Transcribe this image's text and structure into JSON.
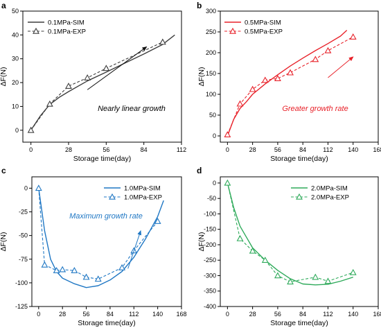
{
  "chart_data": [
    {
      "type": "line",
      "panel": "a",
      "xlabel": "Storage time(day)",
      "ylabel": "ΔF(N)",
      "xlim": [
        -6,
        112
      ],
      "ylim": [
        -5,
        50
      ],
      "xticks": [
        0,
        28,
        56,
        84,
        112
      ],
      "yticks": [
        0,
        10,
        20,
        30,
        40,
        50
      ],
      "legend_position": "top-left",
      "annotation": "Nearly linear growth",
      "arrow": [
        [
          42,
          17
        ],
        [
          86,
          35
        ]
      ],
      "color": "#3d3d3d",
      "series": [
        {
          "name": "0.1MPa-SIM",
          "style": "solid",
          "x": [
            0,
            7,
            14,
            21,
            28,
            42,
            56,
            70,
            84,
            98,
            107
          ],
          "y": [
            0,
            6,
            10.8,
            13.8,
            16.2,
            20.7,
            24.4,
            28.2,
            32,
            36,
            40
          ]
        },
        {
          "name": "0.1MPa-EXP",
          "style": "dashed-triangle",
          "x": [
            0,
            14,
            28,
            42,
            56,
            98
          ],
          "y": [
            0,
            11,
            18.5,
            22,
            26,
            37
          ]
        }
      ]
    },
    {
      "type": "line",
      "panel": "b",
      "xlabel": "Storage time(day)",
      "ylabel": "ΔF(N)",
      "xlim": [
        -8,
        168
      ],
      "ylim": [
        -15,
        300
      ],
      "xticks": [
        0,
        28,
        56,
        84,
        112,
        140,
        168
      ],
      "yticks": [
        0,
        50,
        100,
        150,
        200,
        250,
        300
      ],
      "legend_position": "top-left",
      "annotation": "Greater growth rate",
      "arrow": [
        [
          112,
          140
        ],
        [
          140,
          190
        ]
      ],
      "color": "#e8222a",
      "series": [
        {
          "name": "0.5MPa-SIM",
          "style": "solid",
          "x": [
            0,
            7,
            14,
            21,
            28,
            42,
            56,
            70,
            84,
            98,
            112,
            126,
            133
          ],
          "y": [
            0,
            40,
            66,
            82,
            100,
            125,
            147,
            168,
            187,
            205,
            222,
            240,
            254
          ]
        },
        {
          "name": "0.5MPa-EXP",
          "style": "dashed-triangle",
          "x": [
            0,
            14,
            28,
            42,
            56,
            70,
            98,
            112,
            140
          ],
          "y": [
            3,
            77,
            112,
            134,
            138,
            152,
            184,
            205,
            238
          ]
        }
      ]
    },
    {
      "type": "line",
      "panel": "c",
      "xlabel": "Storage time(day)",
      "ylabel": "ΔF(N)",
      "xlim": [
        -8,
        168
      ],
      "ylim": [
        -125,
        12
      ],
      "xticks": [
        0,
        28,
        56,
        84,
        112,
        140,
        168
      ],
      "yticks": [
        0,
        -25,
        -50,
        -75,
        -100,
        -125
      ],
      "legend_position": "top-right",
      "annotation": "Maximum growth rate",
      "arrow": [
        [
          105,
          -85
        ],
        [
          120,
          -45
        ]
      ],
      "color": "#1f77c4",
      "series": [
        {
          "name": "1.0MPa-SIM",
          "style": "solid",
          "x": [
            0,
            7,
            14,
            21,
            28,
            42,
            56,
            70,
            84,
            98,
            112,
            126,
            140,
            147
          ],
          "y": [
            0,
            -45,
            -75,
            -88,
            -95,
            -101,
            -105,
            -103,
            -97,
            -88,
            -73,
            -53,
            -30,
            -13
          ]
        },
        {
          "name": "1.0MPa-EXP",
          "style": "dashed-triangle",
          "x": [
            0,
            7,
            21,
            28,
            42,
            56,
            70,
            98,
            112,
            140
          ],
          "y": [
            0,
            -81,
            -87,
            -86,
            -87,
            -94,
            -96,
            -84,
            -66,
            -35
          ]
        }
      ]
    },
    {
      "type": "line",
      "panel": "d",
      "xlabel": "Storage time(day)",
      "ylabel": "ΔF(N)",
      "xlim": [
        -8,
        168
      ],
      "ylim": [
        -400,
        20
      ],
      "xticks": [
        0,
        28,
        56,
        84,
        112,
        140,
        168
      ],
      "yticks": [
        0,
        -50,
        -100,
        -150,
        -200,
        -250,
        -300,
        -350,
        -400
      ],
      "legend_position": "top-right",
      "color": "#2eaa5a",
      "series": [
        {
          "name": "2.0MPa-SIM",
          "style": "solid",
          "x": [
            0,
            7,
            14,
            21,
            28,
            42,
            56,
            70,
            84,
            98,
            112,
            126,
            140
          ],
          "y": [
            0,
            -80,
            -140,
            -175,
            -210,
            -250,
            -283,
            -310,
            -327,
            -330,
            -328,
            -318,
            -305
          ]
        },
        {
          "name": "2.0MPa-EXP",
          "style": "dashed-triangle",
          "x": [
            0,
            14,
            28,
            42,
            56,
            70,
            98,
            112,
            140
          ],
          "y": [
            0,
            -180,
            -220,
            -250,
            -300,
            -320,
            -305,
            -318,
            -290
          ]
        }
      ]
    }
  ]
}
